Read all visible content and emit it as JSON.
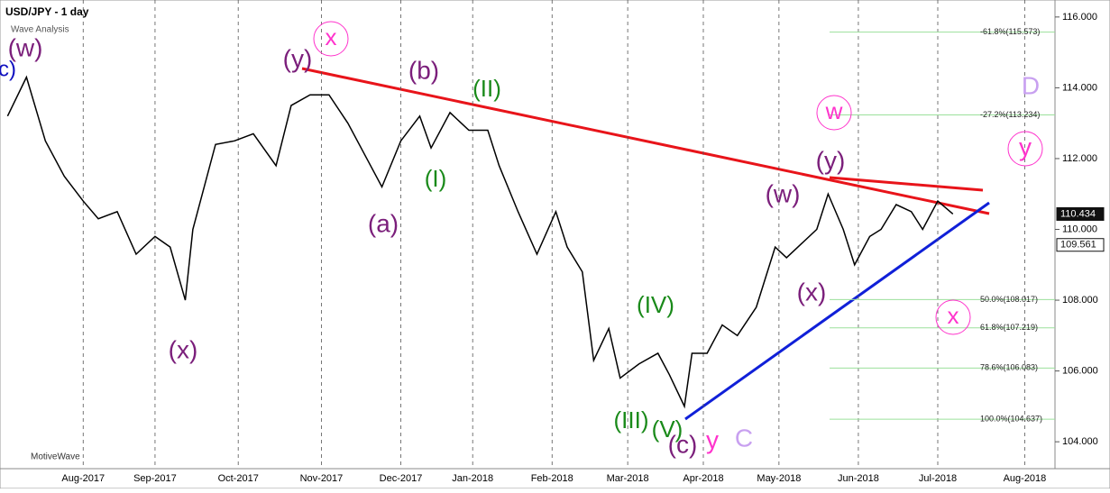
{
  "chart_data": {
    "type": "line",
    "title": "USD/JPY - 1 day",
    "subtitle": "Wave Analysis",
    "footer": "MotiveWave",
    "series": [
      {
        "name": "USD/JPY",
        "color": "#000000",
        "x": [
          0,
          5,
          10,
          15,
          20,
          24,
          29,
          34,
          39,
          43,
          47,
          49,
          55,
          60,
          65,
          71,
          75,
          80,
          85,
          90,
          95,
          99,
          104,
          109,
          112,
          117,
          122,
          127,
          130,
          135,
          140,
          145,
          148,
          152,
          155,
          159,
          162,
          167,
          172,
          175,
          179,
          181,
          185,
          189,
          193,
          198,
          203,
          206,
          210,
          214,
          217,
          221,
          224,
          228,
          231,
          235,
          239,
          242,
          246,
          250
        ],
        "values": [
          113.2,
          114.3,
          112.5,
          111.5,
          110.8,
          110.3,
          110.5,
          109.3,
          109.8,
          109.5,
          108.0,
          110.0,
          112.4,
          112.5,
          112.7,
          111.8,
          113.5,
          113.8,
          113.8,
          113.0,
          112.0,
          111.2,
          112.5,
          113.2,
          112.3,
          113.3,
          112.8,
          112.8,
          111.8,
          110.5,
          109.3,
          110.5,
          109.5,
          108.8,
          106.3,
          107.2,
          105.8,
          106.2,
          106.5,
          105.9,
          105.0,
          106.5,
          106.5,
          107.3,
          107.0,
          107.8,
          109.5,
          109.2,
          109.6,
          110.0,
          111.0,
          110.0,
          109.0,
          109.8,
          110.0,
          110.7,
          110.5,
          110.0,
          110.8,
          110.434
        ]
      }
    ],
    "xlim": [
      -2,
      277
    ],
    "ylim": [
      103.24,
      116.48
    ],
    "xticks": [
      {
        "value": 20,
        "label": "Aug-2017"
      },
      {
        "value": 39,
        "label": "Sep-2017"
      },
      {
        "value": 61,
        "label": "Oct-2017"
      },
      {
        "value": 83,
        "label": "Nov-2017"
      },
      {
        "value": 104,
        "label": "Dec-2017"
      },
      {
        "value": 123,
        "label": "Jan-2018"
      },
      {
        "value": 144,
        "label": "Feb-2018"
      },
      {
        "value": 164,
        "label": "Mar-2018"
      },
      {
        "value": 184,
        "label": "Apr-2018"
      },
      {
        "value": 204,
        "label": "May-2018"
      },
      {
        "value": 225,
        "label": "Jun-2018"
      },
      {
        "value": 246,
        "label": "Jul-2018"
      },
      {
        "value": 269,
        "label": "Aug-2018"
      }
    ],
    "yticks": [
      {
        "value": 104,
        "label": "104.000"
      },
      {
        "value": 106,
        "label": "106.000"
      },
      {
        "value": 108,
        "label": "108.000"
      },
      {
        "value": 110,
        "label": "110.000"
      },
      {
        "value": 112,
        "label": "112.000"
      },
      {
        "value": 114,
        "label": "114.000"
      },
      {
        "value": 116,
        "label": "116.000"
      }
    ],
    "fib_levels": [
      {
        "value": 115.573,
        "label": "-61.8%(115.573)"
      },
      {
        "value": 113.234,
        "label": "-27.2%(113.234)"
      },
      {
        "value": 108.017,
        "label": "50.0%(108.017)"
      },
      {
        "value": 107.219,
        "label": "61.8%(107.219)"
      },
      {
        "value": 106.083,
        "label": "78.6%(106.083)"
      },
      {
        "value": 104.637,
        "label": "100.0%(104.637)"
      }
    ],
    "price_labels": [
      {
        "value": 110.434,
        "label": "110.434"
      },
      {
        "value": 109.561,
        "label": "109.561"
      }
    ],
    "annotations": [
      {
        "text": "(w)",
        "color": "#7b1f7b"
      },
      {
        "text": "c)",
        "color": "#1010c0"
      },
      {
        "text": "(y)",
        "color": "#7b1f7b"
      },
      {
        "text": "x",
        "color": "#ff33cc"
      },
      {
        "text": "(b)",
        "color": "#7b1f7b"
      },
      {
        "text": "(II)",
        "color": "#1a8a1a"
      },
      {
        "text": "(I)",
        "color": "#1a8a1a"
      },
      {
        "text": "(a)",
        "color": "#7b1f7b"
      },
      {
        "text": "(x)",
        "color": "#7b1f7b"
      },
      {
        "text": "(IV)",
        "color": "#1a8a1a"
      },
      {
        "text": "(III)",
        "color": "#1a8a1a"
      },
      {
        "text": "(V)",
        "color": "#1a8a1a"
      },
      {
        "text": "(c)",
        "color": "#7b1f7b"
      },
      {
        "text": "y",
        "color": "#ff33cc"
      },
      {
        "text": "C",
        "color": "#c8a0f0"
      },
      {
        "text": "(w)",
        "color": "#7b1f7b"
      },
      {
        "text": "(y)",
        "color": "#7b1f7b"
      },
      {
        "text": "(x)",
        "color": "#7b1f7b"
      },
      {
        "text": "w",
        "color": "#ff33cc"
      },
      {
        "text": "D",
        "color": "#c8a0f0"
      },
      {
        "text": "y",
        "color": "#ff33cc"
      },
      {
        "text": "x",
        "color": "#ff33cc"
      }
    ]
  }
}
